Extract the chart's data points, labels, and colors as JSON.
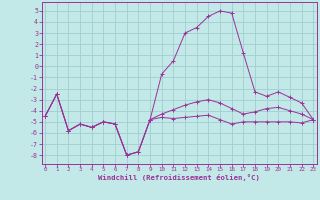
{
  "xlabel": "Windchill (Refroidissement éolien,°C)",
  "x_ticks": [
    0,
    1,
    2,
    3,
    4,
    5,
    6,
    7,
    8,
    9,
    10,
    11,
    12,
    13,
    14,
    15,
    16,
    17,
    18,
    19,
    20,
    21,
    22,
    23
  ],
  "y_ticks": [
    5,
    4,
    3,
    2,
    1,
    0,
    -1,
    -2,
    -3,
    -4,
    -5,
    -6,
    -7,
    -8
  ],
  "ylim": [
    -8.8,
    5.8
  ],
  "xlim": [
    -0.3,
    23.3
  ],
  "bg_color": "#c2e8e8",
  "grid_color": "#a0d0d0",
  "line_color": "#993399",
  "series1_x": [
    0,
    1,
    2,
    3,
    4,
    5,
    6,
    7,
    8,
    9,
    10,
    11,
    12,
    13,
    14,
    15,
    16,
    17,
    18,
    19,
    20,
    21,
    22,
    23
  ],
  "series1_y": [
    -4.5,
    -2.5,
    -5.8,
    -5.2,
    -5.5,
    -5.0,
    -5.2,
    -8.0,
    -7.7,
    -4.8,
    -4.6,
    -4.7,
    -4.6,
    -4.5,
    -4.4,
    -4.8,
    -5.2,
    -5.0,
    -5.0,
    -5.0,
    -5.0,
    -5.0,
    -5.1,
    -4.8
  ],
  "series2_x": [
    0,
    1,
    2,
    3,
    4,
    5,
    6,
    7,
    8,
    9,
    10,
    11,
    12,
    13,
    14,
    15,
    16,
    17,
    18,
    19,
    20,
    21,
    22,
    23
  ],
  "series2_y": [
    -4.5,
    -2.5,
    -5.8,
    -5.2,
    -5.5,
    -5.0,
    -5.2,
    -8.0,
    -7.7,
    -4.8,
    -0.7,
    0.5,
    3.0,
    3.5,
    4.5,
    5.0,
    4.8,
    1.2,
    -2.3,
    -2.7,
    -2.3,
    -2.8,
    -3.3,
    -4.8
  ],
  "series3_x": [
    0,
    1,
    2,
    3,
    4,
    5,
    6,
    7,
    8,
    9,
    10,
    11,
    12,
    13,
    14,
    15,
    16,
    17,
    18,
    19,
    20,
    21,
    22,
    23
  ],
  "series3_y": [
    -4.5,
    -2.5,
    -5.8,
    -5.2,
    -5.5,
    -5.0,
    -5.2,
    -8.0,
    -7.7,
    -4.8,
    -4.3,
    -3.9,
    -3.5,
    -3.2,
    -3.0,
    -3.3,
    -3.8,
    -4.3,
    -4.1,
    -3.8,
    -3.7,
    -4.0,
    -4.3,
    -4.8
  ]
}
